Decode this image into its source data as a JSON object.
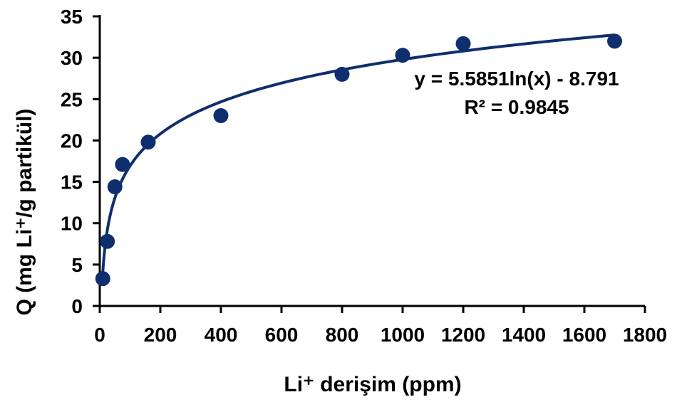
{
  "chart_data": {
    "type": "scatter",
    "title": "",
    "xlabel": "Li⁺ derişim (ppm)",
    "ylabel": "Q (mg Li⁺/g partikül)",
    "xlim": [
      0,
      1800
    ],
    "ylim": [
      0,
      35
    ],
    "xticks": [
      "0",
      "200",
      "400",
      "600",
      "800",
      "1000",
      "1200",
      "1400",
      "1600",
      "1800"
    ],
    "yticks": [
      "0",
      "5",
      "10",
      "15",
      "20",
      "25",
      "30",
      "35"
    ],
    "grid": false,
    "legend": "none",
    "series": [
      {
        "x": [
          10,
          25,
          50,
          75,
          160,
          400,
          800,
          1000,
          1200,
          1700
        ],
        "y": [
          3.3,
          7.8,
          14.4,
          17.1,
          19.8,
          23.0,
          28.0,
          30.3,
          31.7,
          32.0
        ]
      }
    ],
    "trendline": {
      "type": "logarithmic",
      "a": 5.5851,
      "b": -8.791,
      "equation": "y = 5.5851ln(x) - 8.791",
      "r2": "R² = 0.9845"
    },
    "colors": {
      "marker": "#0f2e6e",
      "trendline": "#0f2e6e",
      "axis": "#000000"
    }
  }
}
